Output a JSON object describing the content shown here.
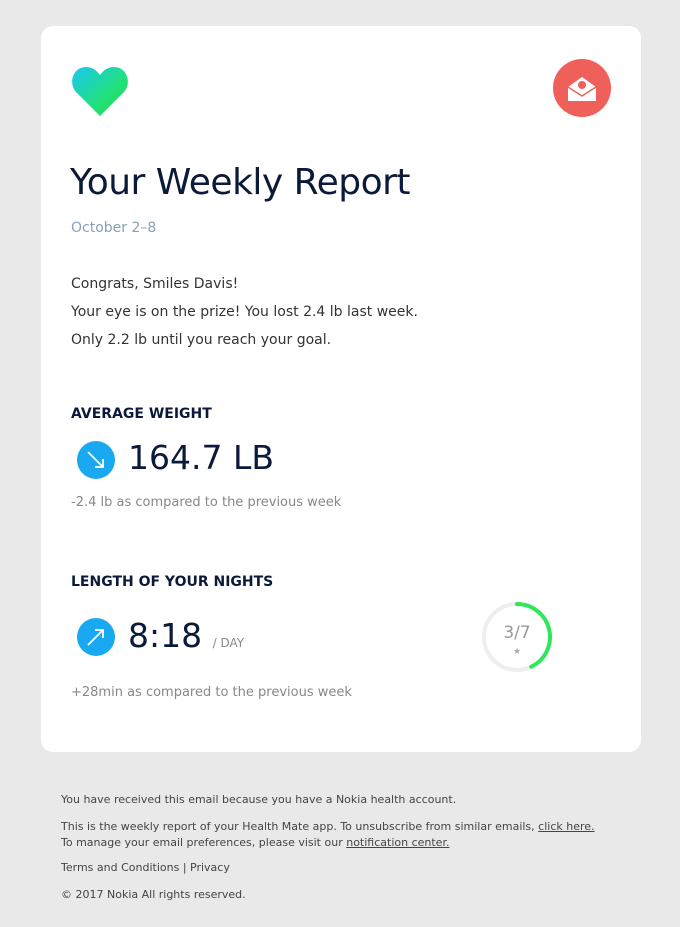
{
  "header": {
    "title": "Your Weekly Report",
    "date_range": "October 2–8"
  },
  "greeting": [
    "Congrats, Smiles Davis!",
    "Your eye is on the prize! You lost 2.4 lb last week.",
    "Only 2.2 lb until you reach your goal."
  ],
  "sections": [
    {
      "title": "AVERAGE WEIGHT",
      "value": "164.7 LB",
      "comparison": "-2.4 lb as compared to the previous week"
    },
    {
      "title": "LENGTH OF YOUR NIGHTS",
      "value": "8:18",
      "unit": "/ DAY",
      "comparison": "+28min as compared to the previous week",
      "goal": {
        "label": "3/7",
        "achieved": 3,
        "total": 7,
        "icon": "★"
      }
    }
  ],
  "footer": {
    "notice": "You have received this email because you have a Nokia health account.",
    "unsubscribe_text": "This is the weekly report of your Health Mate app. To unsubscribe from similar emails, ",
    "unsubscribe_link": "click here.",
    "preferences_text": "To manage your email preferences, please visit our ",
    "preferences_link": "notification center.",
    "terms": "Terms and Conditions",
    "separator": "|",
    "privacy": "Privacy",
    "copyright": "© 2017 Nokia All rights reserved."
  }
}
